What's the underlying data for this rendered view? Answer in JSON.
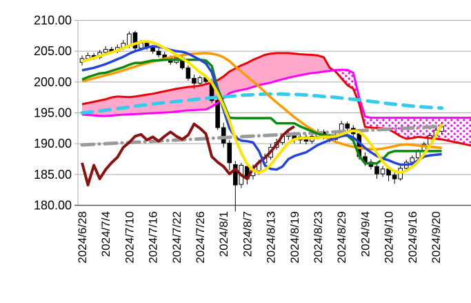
{
  "chart_data": {
    "type": "candlestick",
    "title": "",
    "subtitle": "",
    "overlay": "ichimoku-cloud-and-moving-averages",
    "grid": true,
    "legend_position": "none",
    "y_axis": {
      "min": 180,
      "max": 210,
      "tick_step": 5,
      "tick_labels": [
        "210.00",
        "205.00",
        "200.00",
        "195.00",
        "190.00",
        "185.00",
        "180.00"
      ]
    },
    "x_axis": {
      "tick_labels": [
        "2024/6/28",
        "2024/7/4",
        "2024/7/10",
        "2024/7/16",
        "2024/7/22",
        "2024/7/26",
        "2024/8/1",
        "2024/8/7",
        "2024/8/13",
        "2024/8/19",
        "2024/8/23",
        "2024/8/29",
        "2024/9/4",
        "2024/9/10",
        "2024/9/16",
        "2024/9/20"
      ],
      "ticks_every_n_candles": 4,
      "label_rotation_deg": -90
    },
    "candles_ohlc": [
      [
        203.2,
        204.3,
        202.7,
        203.8
      ],
      [
        203.8,
        204.8,
        203.4,
        204.3
      ],
      [
        204.3,
        204.7,
        203.6,
        204.0
      ],
      [
        204.0,
        205.2,
        203.7,
        204.8
      ],
      [
        204.8,
        205.8,
        204.4,
        205.3
      ],
      [
        205.3,
        205.7,
        204.6,
        205.0
      ],
      [
        205.0,
        206.1,
        204.7,
        205.6
      ],
      [
        205.6,
        206.8,
        205.2,
        206.3
      ],
      [
        205.8,
        208.2,
        205.5,
        207.8
      ],
      [
        208.0,
        208.3,
        205.1,
        205.5
      ],
      [
        205.5,
        206.8,
        205.1,
        206.3
      ],
      [
        206.3,
        206.7,
        205.2,
        205.6
      ],
      [
        205.6,
        206.0,
        204.6,
        205.0
      ],
      [
        205.0,
        205.5,
        204.0,
        204.4
      ],
      [
        204.4,
        204.9,
        203.4,
        203.8
      ],
      [
        203.8,
        204.3,
        202.8,
        203.2
      ],
      [
        203.2,
        204.3,
        202.9,
        203.9
      ],
      [
        203.9,
        204.2,
        202.0,
        202.3
      ],
      [
        202.3,
        202.7,
        200.2,
        200.6
      ],
      [
        200.6,
        201.2,
        198.9,
        199.8
      ],
      [
        199.8,
        201.0,
        199.4,
        200.7
      ],
      [
        200.7,
        201.2,
        199.6,
        200.1
      ],
      [
        200.1,
        200.5,
        196.6,
        197.0
      ],
      [
        197.0,
        197.5,
        192.2,
        192.6
      ],
      [
        192.6,
        193.4,
        189.4,
        190.1
      ],
      [
        190.1,
        190.6,
        185.7,
        186.9
      ],
      [
        186.6,
        187.2,
        179.0,
        183.3
      ],
      [
        183.4,
        186.9,
        182.8,
        186.5
      ],
      [
        186.3,
        186.9,
        183.4,
        184.3
      ],
      [
        184.8,
        186.6,
        184.2,
        185.8
      ],
      [
        185.6,
        187.4,
        185.0,
        186.9
      ],
      [
        186.9,
        188.4,
        186.2,
        187.8
      ],
      [
        187.8,
        190.0,
        187.4,
        189.4
      ],
      [
        189.4,
        190.8,
        189.0,
        190.2
      ],
      [
        190.2,
        191.6,
        189.8,
        191.2
      ],
      [
        191.2,
        192.0,
        190.6,
        191.5
      ],
      [
        191.5,
        191.9,
        190.1,
        190.6
      ],
      [
        190.6,
        191.6,
        190.0,
        191.1
      ],
      [
        191.1,
        191.5,
        189.9,
        190.4
      ],
      [
        190.4,
        191.7,
        190.0,
        191.2
      ],
      [
        191.2,
        192.4,
        190.7,
        191.9
      ],
      [
        191.9,
        192.3,
        190.7,
        191.2
      ],
      [
        191.2,
        191.6,
        190.2,
        190.7
      ],
      [
        190.7,
        191.9,
        190.3,
        191.4
      ],
      [
        191.4,
        193.7,
        191.1,
        193.2
      ],
      [
        193.2,
        193.6,
        192.1,
        192.5
      ],
      [
        192.5,
        193.0,
        191.1,
        191.6
      ],
      [
        191.6,
        192.0,
        187.4,
        187.9
      ],
      [
        187.9,
        188.6,
        186.4,
        187.0
      ],
      [
        187.0,
        187.5,
        185.8,
        186.3
      ],
      [
        186.3,
        186.8,
        184.3,
        185.1
      ],
      [
        185.1,
        186.4,
        184.6,
        185.9
      ],
      [
        185.9,
        186.3,
        183.9,
        184.9
      ],
      [
        184.9,
        185.4,
        183.5,
        184.3
      ],
      [
        184.3,
        186.4,
        184.0,
        186.0
      ],
      [
        186.0,
        187.4,
        185.5,
        187.0
      ],
      [
        187.0,
        188.1,
        186.5,
        187.7
      ],
      [
        187.7,
        189.1,
        187.3,
        188.7
      ],
      [
        188.7,
        190.3,
        188.3,
        189.9
      ],
      [
        189.9,
        191.7,
        189.5,
        191.3
      ],
      [
        191.3,
        192.6,
        190.9,
        192.2
      ],
      [
        192.0,
        193.4,
        191.6,
        192.8
      ]
    ],
    "ichimoku": {
      "senkou_span_a": [
        196.4,
        196.6,
        196.8,
        197.0,
        197.2,
        197.5,
        197.65,
        197.6,
        197.55,
        197.65,
        197.8,
        197.95,
        198.1,
        198.3,
        198.5,
        198.7,
        198.9,
        199.05,
        199.2,
        199.3,
        199.4,
        199.65,
        199.9,
        200.3,
        200.9,
        201.7,
        202.2,
        202.7,
        203.1,
        203.6,
        204.0,
        204.4,
        204.6,
        204.7,
        204.7,
        204.7,
        204.6,
        204.5,
        204.45,
        204.4,
        204.3,
        204.0,
        202.3,
        201.7,
        200.6,
        199.5,
        198.9,
        196.5,
        192.7,
        192.6,
        192.55,
        192.5,
        192.3,
        191.8,
        191.2,
        190.8,
        190.9,
        191.1,
        191.0,
        190.9,
        190.8,
        190.7,
        190.5,
        190.3,
        190.1,
        189.9,
        189.7
      ],
      "senkou_span_b": [
        194.7,
        194.65,
        194.6,
        194.5,
        194.5,
        194.55,
        194.65,
        194.7,
        194.75,
        194.8,
        194.85,
        194.9,
        194.95,
        195.0,
        195.05,
        195.1,
        195.2,
        195.3,
        195.4,
        195.45,
        195.5,
        195.55,
        196.0,
        196.6,
        197.4,
        198.2,
        198.5,
        198.7,
        198.9,
        199.2,
        199.5,
        199.7,
        199.9,
        200.2,
        200.45,
        200.7,
        200.9,
        201.1,
        201.3,
        201.45,
        201.55,
        201.7,
        201.8,
        201.95,
        202.0,
        201.95,
        201.5,
        197.5,
        194.4,
        194.2,
        194.2,
        194.2,
        194.2,
        194.2,
        194.2,
        194.2,
        194.2,
        194.2,
        194.2,
        194.2,
        194.2,
        194.2,
        194.2,
        194.2,
        194.2,
        194.2,
        194.2
      ],
      "tenkan_sen": [
        201.9,
        202.1,
        202.3,
        202.6,
        202.9,
        203.3,
        203.7,
        204.1,
        204.6,
        205.0,
        205.3,
        205.6,
        205.8,
        205.7,
        205.5,
        205.2,
        205.0,
        204.9,
        204.6,
        204.1,
        203.6,
        203.0,
        201.6,
        198.5,
        195.5,
        192.5,
        191.0,
        190.5,
        190.4,
        190.2,
        188.8,
        186.5,
        185.9,
        185.8,
        186.3,
        187.5,
        188.0,
        188.3,
        188.6,
        189.2,
        189.8,
        190.2,
        190.6,
        190.9,
        191.2,
        191.4,
        191.0,
        190.2,
        189.3,
        188.6,
        188.0,
        187.6,
        187.3,
        186.9,
        186.6,
        186.6,
        186.7,
        187.3,
        187.9,
        188.1,
        188.2,
        188.3
      ],
      "kijun_sen": [
        200.4,
        200.8,
        201.1,
        201.4,
        201.5,
        201.8,
        202.1,
        202.4,
        202.8,
        203.1,
        203.1,
        203.3,
        203.5,
        203.5,
        203.6,
        203.6,
        203.6,
        203.6,
        203.6,
        203.6,
        203.6,
        203.5,
        202.6,
        199.0,
        196.5,
        194.2,
        194.15,
        194.15,
        194.15,
        194.15,
        194.15,
        194.15,
        194.15,
        193.3,
        193.3,
        193.3,
        193.3,
        192.8,
        192.4,
        192.0,
        191.6,
        191.4,
        191.3,
        191.3,
        191.3,
        191.3,
        190.5,
        188.0,
        186.8,
        186.8,
        186.8,
        187.5,
        188.5,
        188.8,
        188.8,
        188.8,
        188.8,
        188.8,
        188.8,
        188.8,
        188.8,
        188.8
      ],
      "chikou_span": [
        186.9,
        183.3,
        186.5,
        184.3,
        185.8,
        186.9,
        187.8,
        189.4,
        190.2,
        191.2,
        191.5,
        190.6,
        191.1,
        190.4,
        191.2,
        191.9,
        191.2,
        190.7,
        191.4,
        193.2,
        192.5,
        191.6,
        187.9,
        187.0,
        186.3,
        185.1,
        185.9,
        184.9,
        184.3,
        186.0,
        187.0,
        187.7,
        188.7,
        189.9,
        191.3,
        192.2,
        192.8
      ]
    },
    "moving_averages": {
      "fast_ma": [
        203.3,
        203.6,
        203.9,
        204.2,
        204.5,
        204.8,
        205.1,
        205.5,
        205.9,
        206.2,
        206.5,
        206.6,
        206.4,
        206.0,
        205.5,
        205.0,
        204.4,
        203.8,
        203.2,
        202.4,
        201.6,
        200.9,
        199.9,
        198.2,
        196.1,
        193.7,
        190.8,
        188.5,
        186.7,
        185.7,
        185.3,
        185.7,
        186.6,
        187.8,
        189.0,
        190.1,
        190.7,
        190.9,
        190.9,
        190.9,
        191.0,
        191.1,
        191.1,
        191.2,
        191.5,
        191.9,
        192.1,
        191.9,
        191.1,
        189.9,
        188.5,
        187.1,
        186.1,
        185.5,
        185.3,
        185.6,
        186.2,
        187.1,
        188.3,
        189.7,
        191.3,
        193.2
      ],
      "mid_ma": [
        200.1,
        200.35,
        200.6,
        200.85,
        201.1,
        201.35,
        201.6,
        201.9,
        202.2,
        202.5,
        202.8,
        203.05,
        203.3,
        203.55,
        203.8,
        204.0,
        204.2,
        204.35,
        204.5,
        204.6,
        204.65,
        204.7,
        204.6,
        204.4,
        204.0,
        203.4,
        202.5,
        201.7,
        200.9,
        200.1,
        199.3,
        198.4,
        197.5,
        196.7,
        195.9,
        195.1,
        194.3,
        193.6,
        192.9,
        192.3,
        191.7,
        191.2,
        190.7,
        190.3,
        190.0,
        189.7,
        189.5,
        189.3,
        189.2,
        189.1,
        189.1,
        189.2,
        189.4,
        189.6,
        189.8,
        189.9,
        189.8,
        189.7,
        189.6,
        189.5,
        189.4,
        189.3
      ],
      "slow_ma_dashed": [
        195.0,
        195.1,
        195.2,
        195.3,
        195.45,
        195.55,
        195.7,
        195.8,
        195.95,
        196.1,
        196.2,
        196.3,
        196.45,
        196.55,
        196.65,
        196.75,
        196.85,
        196.95,
        197.05,
        197.15,
        197.25,
        197.35,
        197.45,
        197.55,
        197.6,
        197.7,
        197.75,
        197.85,
        197.9,
        197.95,
        198.0,
        198.05,
        198.05,
        198.05,
        198.05,
        198.0,
        198.0,
        197.95,
        197.9,
        197.8,
        197.75,
        197.65,
        197.6,
        197.5,
        197.4,
        197.3,
        197.2,
        197.1,
        197.0,
        196.85,
        196.75,
        196.6,
        196.5,
        196.4,
        196.3,
        196.2,
        196.1,
        196.0,
        195.95,
        195.88,
        195.82,
        195.78
      ],
      "long_ma_dashdot": [
        189.8,
        189.85,
        189.9,
        189.95,
        190.0,
        190.05,
        190.1,
        190.14,
        190.19,
        190.24,
        190.29,
        190.34,
        190.39,
        190.44,
        190.49,
        190.54,
        190.59,
        190.64,
        190.69,
        190.73,
        190.78,
        190.83,
        190.88,
        190.93,
        190.98,
        191.03,
        191.08,
        191.13,
        191.18,
        191.23,
        191.28,
        191.32,
        191.37,
        191.42,
        191.47,
        191.52,
        191.57,
        191.62,
        191.67,
        191.72,
        191.77,
        191.82,
        191.87,
        191.91,
        191.96,
        192.01,
        192.06,
        192.11,
        192.16,
        192.21,
        192.26,
        192.31,
        192.36,
        192.41,
        192.46,
        192.5,
        192.55,
        192.6,
        192.65,
        192.7,
        192.75,
        192.8
      ]
    },
    "colors": {
      "fast_ma": "#ffe400",
      "tenkan_sen": "#2244dd",
      "kijun_sen": "#0a8a0a",
      "mid_ma": "#ff9900",
      "slow_ma_dashed": "#33ccee",
      "long_ma_dashdot": "#9a9a9a",
      "chikou_span": "#8b1111",
      "senkou_span_a": "#ee0000",
      "senkou_span_b": "#ff00ff",
      "cloud_bullish_fill": "#ffa8cb",
      "cloud_bearish_dot": "#ff00ff",
      "candle_up_fill": "#ffffff",
      "candle_down_fill": "#000000",
      "grid": "#ababab",
      "axis": "#595959",
      "text": "#000000",
      "background": "#ffffff"
    }
  }
}
